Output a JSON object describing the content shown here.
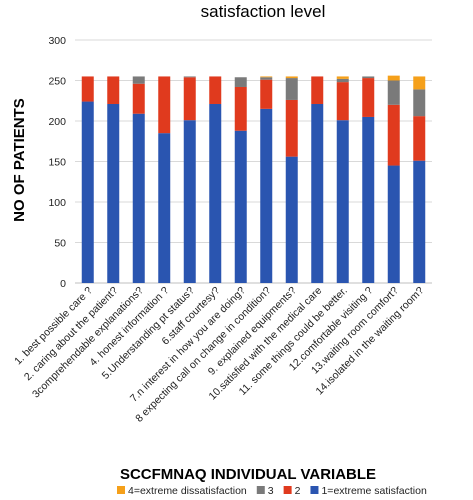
{
  "chart_data": {
    "type": "bar",
    "stacked": true,
    "title": "satisfaction level",
    "xlabel": "SCCFMNAQ INDIVIDUAL VARIABLE",
    "ylabel": "NO OF PATIENTS",
    "ylim": [
      0,
      300
    ],
    "yticks": [
      "0",
      "50",
      "100",
      "150",
      "200",
      "250",
      "300"
    ],
    "grid": true,
    "legend_position": "bottom",
    "categories": [
      "1. best possible care ?",
      "2. caring about the patient?",
      "3comprehendable explanations?",
      "4. honest information ?",
      "5.Understanding pt status?",
      "6.staff courtesy?",
      "7.n interest in how you are doing?",
      "8 expecting call on change in condition?",
      "9. explained equipments?",
      "10.satisfied with the medical care",
      "11. some things could be better.",
      "12.comfortable visiting ?",
      "13.waiting room comfort?",
      "14.isolated in the waiting room?"
    ],
    "series": [
      {
        "name": "1=extreme satisfaction",
        "color": "#2a55b0",
        "values": [
          224,
          221,
          209,
          185,
          201,
          221,
          188,
          215,
          156,
          221,
          201,
          205,
          145,
          151
        ]
      },
      {
        "name": "2",
        "color": "#e03a1e",
        "values": [
          31,
          34,
          37,
          70,
          53,
          34,
          54,
          36,
          70,
          34,
          47,
          48,
          75,
          55
        ]
      },
      {
        "name": "3",
        "color": "#7a7a7a",
        "values": [
          0,
          0,
          9,
          0,
          1,
          0,
          12,
          3,
          27,
          0,
          4,
          2,
          30,
          33
        ]
      },
      {
        "name": "4=extreme dissatisfaction",
        "color": "#f5a01a",
        "values": [
          0,
          0,
          0,
          0,
          0,
          0,
          0,
          1,
          2,
          0,
          3,
          0,
          6,
          16
        ]
      }
    ],
    "legend_order": [
      "4=extreme dissatisfaction",
      "3",
      "2",
      "1=extreme satisfaction"
    ]
  }
}
